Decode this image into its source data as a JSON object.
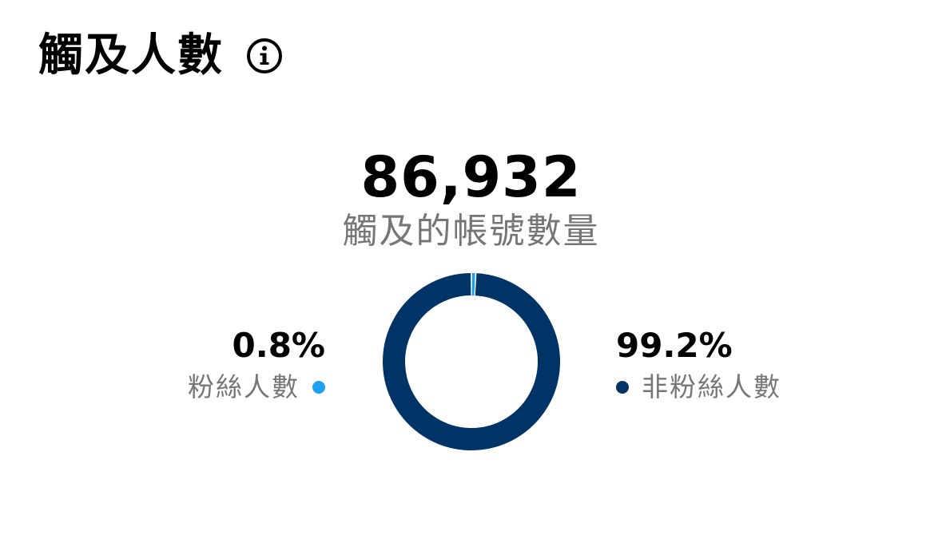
{
  "header": {
    "title": "觸及人數",
    "info_icon": "info-icon"
  },
  "summary": {
    "total": "86,932",
    "label": "觸及的帳號數量"
  },
  "legend": {
    "followers": {
      "percent": "0.8%",
      "label": "粉絲人數",
      "color": "#1DA1F2"
    },
    "non_followers": {
      "percent": "99.2%",
      "label": "非粉絲人數",
      "color": "#003366"
    }
  },
  "chart_data": {
    "type": "pie",
    "style": "donut",
    "categories": [
      "粉絲人數",
      "非粉絲人數"
    ],
    "values": [
      0.8,
      99.2
    ],
    "colors": [
      "#1DA1F2",
      "#003366"
    ],
    "title": ""
  }
}
